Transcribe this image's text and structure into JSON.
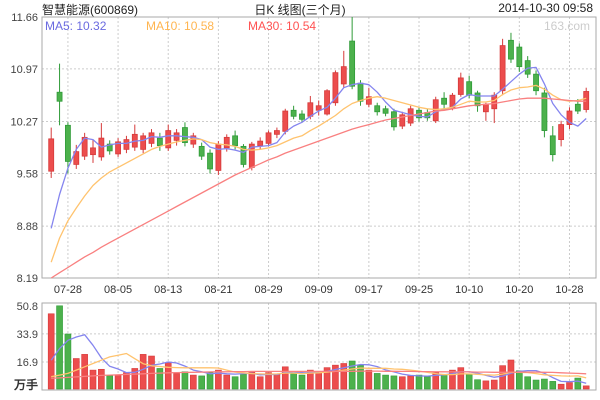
{
  "header": {
    "stock": "智慧能源(600869)",
    "title": "日K 线图(三个月)",
    "datetime": "2014-10-30 09:58"
  },
  "watermark": "163.com",
  "legend": {
    "items": [
      {
        "text": "MA5: 10.32",
        "color": "#6a6ae0"
      },
      {
        "text": "MA10: 10.58",
        "color": "#ffb550"
      },
      {
        "text": "MA30: 10.54",
        "color": "#ff5252"
      }
    ]
  },
  "chart_data": {
    "type": "candlestick",
    "title": "智慧能源(600869) 日K线图(三个月)",
    "y_axis": {
      "max": 11.66,
      "min": 8.19,
      "ticks": [
        11.66,
        10.97,
        10.27,
        9.58,
        8.88,
        8.19
      ]
    },
    "vol_axis": {
      "scale_max": 52.5,
      "ticks": [
        50.8,
        33.9,
        16.9
      ],
      "unit": "万手"
    },
    "x_ticks": [
      {
        "label": "07-28",
        "i": 2
      },
      {
        "label": "08-05",
        "i": 8
      },
      {
        "label": "08-13",
        "i": 14
      },
      {
        "label": "08-21",
        "i": 20
      },
      {
        "label": "08-29",
        "i": 26
      },
      {
        "label": "09-09",
        "i": 32
      },
      {
        "label": "09-17",
        "i": 38
      },
      {
        "label": "09-25",
        "i": 44
      },
      {
        "label": "10-10",
        "i": 50
      },
      {
        "label": "10-20",
        "i": 56
      },
      {
        "label": "10-28",
        "i": 62
      }
    ],
    "colors": {
      "up_fill": "#ec4d4d",
      "up_stroke": "#d63a3a",
      "down_fill": "#4cb14c",
      "down_stroke": "#2f9b38",
      "ma5": "#8585ef",
      "ma10": "#ffc36e",
      "ma30": "#f98080",
      "grid": "#cccccc",
      "border": "#aaaaaa",
      "y_label": "#444444",
      "x_label": "#333333"
    },
    "candles": [
      [
        "07-24",
        9.61,
        10.19,
        9.52,
        10.04,
        46.0
      ],
      [
        "07-25",
        10.66,
        11.04,
        10.22,
        10.54,
        50.8
      ],
      [
        "07-28",
        10.22,
        10.26,
        9.58,
        9.74,
        33.8
      ],
      [
        "07-29",
        9.7,
        9.96,
        9.64,
        9.87,
        19.0
      ],
      [
        "07-30",
        9.81,
        10.12,
        9.76,
        10.06,
        21.5
      ],
      [
        "07-31",
        9.83,
        10.03,
        9.72,
        9.92,
        12.0
      ],
      [
        "08-01",
        9.8,
        10.25,
        9.75,
        10.05,
        12.5
      ],
      [
        "08-04",
        9.97,
        10.02,
        9.83,
        9.88,
        8.6
      ],
      [
        "08-05",
        9.84,
        10.05,
        9.8,
        10.0,
        9.0
      ],
      [
        "08-06",
        9.9,
        10.08,
        9.85,
        10.03,
        10.5
      ],
      [
        "08-07",
        9.93,
        10.23,
        9.88,
        10.1,
        13.0
      ],
      [
        "08-08",
        9.9,
        10.12,
        9.85,
        10.08,
        21.5
      ],
      [
        "08-11",
        9.98,
        10.17,
        9.93,
        10.12,
        20.5
      ],
      [
        "08-12",
        10.05,
        10.12,
        9.88,
        9.95,
        13.0
      ],
      [
        "08-13",
        9.92,
        10.23,
        9.88,
        10.15,
        16.5
      ],
      [
        "08-14",
        10.02,
        10.17,
        9.95,
        10.12,
        10.0
      ],
      [
        "08-15",
        10.19,
        10.26,
        9.94,
        9.99,
        11.0
      ],
      [
        "08-18",
        9.97,
        10.12,
        9.92,
        10.08,
        9.0
      ],
      [
        "08-19",
        9.94,
        9.99,
        9.76,
        9.81,
        8.5
      ],
      [
        "08-20",
        9.85,
        9.9,
        9.58,
        9.64,
        10.5
      ],
      [
        "08-21",
        9.62,
        10.01,
        9.56,
        9.97,
        12.0
      ],
      [
        "08-22",
        9.92,
        10.1,
        9.87,
        10.06,
        9.0
      ],
      [
        "08-25",
        10.08,
        10.15,
        9.9,
        9.95,
        8.0
      ],
      [
        "08-26",
        9.94,
        9.97,
        9.66,
        9.7,
        9.5
      ],
      [
        "08-27",
        9.66,
        10.0,
        9.62,
        9.97,
        11.0
      ],
      [
        "08-28",
        9.95,
        10.06,
        9.9,
        10.01,
        8.0
      ],
      [
        "08-29",
        9.98,
        10.15,
        9.94,
        10.12,
        10.5
      ],
      [
        "09-01",
        10.1,
        10.19,
        10.05,
        10.15,
        9.5
      ],
      [
        "09-02",
        10.14,
        10.44,
        10.1,
        10.41,
        14.0
      ],
      [
        "09-03",
        10.42,
        10.48,
        10.3,
        10.34,
        10.0
      ],
      [
        "09-04",
        10.37,
        10.42,
        10.26,
        10.3,
        9.0
      ],
      [
        "09-05",
        10.34,
        10.61,
        10.3,
        10.52,
        12.0
      ],
      [
        "09-09",
        10.42,
        10.55,
        10.35,
        10.48,
        10.5
      ],
      [
        "09-10",
        10.37,
        10.7,
        10.35,
        10.68,
        13.5
      ],
      [
        "09-11",
        10.52,
        10.95,
        10.48,
        10.92,
        15.0
      ],
      [
        "09-12",
        10.77,
        11.21,
        10.72,
        11.0,
        16.0
      ],
      [
        "09-15",
        11.34,
        11.66,
        10.7,
        10.74,
        17.5
      ],
      [
        "09-16",
        10.78,
        10.82,
        10.48,
        10.54,
        15.0
      ],
      [
        "09-17",
        10.5,
        10.72,
        10.46,
        10.6,
        12.0
      ],
      [
        "09-18",
        10.48,
        10.52,
        10.35,
        10.4,
        10.0
      ],
      [
        "09-19",
        10.44,
        10.48,
        10.34,
        10.38,
        9.0
      ],
      [
        "09-22",
        10.4,
        10.44,
        10.15,
        10.2,
        8.5
      ],
      [
        "09-23",
        10.21,
        10.4,
        10.17,
        10.36,
        8.0
      ],
      [
        "09-24",
        10.25,
        10.48,
        10.21,
        10.44,
        8.5
      ],
      [
        "09-25",
        10.42,
        10.46,
        10.27,
        10.32,
        9.0
      ],
      [
        "09-26",
        10.39,
        10.43,
        10.28,
        10.32,
        8.0
      ],
      [
        "09-29",
        10.28,
        10.6,
        10.25,
        10.56,
        10.5
      ],
      [
        "09-30",
        10.58,
        10.66,
        10.44,
        10.5,
        9.5
      ],
      [
        "10-08",
        10.45,
        10.65,
        10.42,
        10.62,
        12.0
      ],
      [
        "10-09",
        10.63,
        10.92,
        10.6,
        10.85,
        13.5
      ],
      [
        "10-10",
        10.8,
        10.88,
        10.58,
        10.62,
        9.6
      ],
      [
        "10-13",
        10.65,
        10.68,
        10.4,
        10.48,
        6.2
      ],
      [
        "10-14",
        10.4,
        10.52,
        10.28,
        10.5,
        5.5
      ],
      [
        "10-15",
        10.44,
        10.66,
        10.25,
        10.62,
        6.0
      ],
      [
        "10-16",
        10.68,
        11.37,
        10.62,
        11.28,
        14.7
      ],
      [
        "10-17",
        11.35,
        11.45,
        11.05,
        11.1,
        18.1
      ],
      [
        "10-20",
        11.26,
        11.31,
        10.93,
        11.0,
        11.6
      ],
      [
        "10-21",
        11.08,
        11.14,
        10.85,
        10.9,
        8.0
      ],
      [
        "10-22",
        10.9,
        10.95,
        10.62,
        10.68,
        6.0
      ],
      [
        "10-23",
        10.65,
        10.72,
        10.06,
        10.15,
        6.6
      ],
      [
        "10-24",
        10.08,
        10.21,
        9.74,
        9.83,
        5.2
      ],
      [
        "10-27",
        10.03,
        10.28,
        9.94,
        10.23,
        3.5
      ],
      [
        "10-28",
        10.23,
        10.46,
        10.17,
        10.41,
        4.5
      ],
      [
        "10-29",
        10.5,
        10.57,
        10.37,
        10.41,
        7.2
      ],
      [
        "10-30",
        10.43,
        10.72,
        10.39,
        10.67,
        2.5
      ]
    ],
    "vol_color_overrides": {
      "55": "up"
    },
    "ma5": [
      8.85,
      9.3,
      9.65,
      9.9,
      10.05,
      10.03,
      9.93,
      9.96,
      9.98,
      9.98,
      10.01,
      10.02,
      10.07,
      10.06,
      10.08,
      10.08,
      10.07,
      10.06,
      10.03,
      9.93,
      9.9,
      9.91,
      9.89,
      9.86,
      9.93,
      9.94,
      9.95,
      9.99,
      10.13,
      10.21,
      10.26,
      10.34,
      10.41,
      10.46,
      10.58,
      10.72,
      10.76,
      10.78,
      10.76,
      10.66,
      10.53,
      10.42,
      10.39,
      10.36,
      10.34,
      10.33,
      10.4,
      10.43,
      10.46,
      10.57,
      10.63,
      10.61,
      10.61,
      10.61,
      10.7,
      10.8,
      10.9,
      10.98,
      10.99,
      10.77,
      10.51,
      10.36,
      10.26,
      10.21,
      10.31
    ],
    "ma10": [
      8.4,
      8.72,
      8.95,
      9.12,
      9.28,
      9.42,
      9.52,
      9.6,
      9.66,
      9.72,
      9.78,
      9.84,
      9.9,
      9.94,
      9.97,
      10.0,
      10.02,
      10.04,
      10.03,
      9.99,
      9.97,
      9.96,
      9.94,
      9.9,
      9.89,
      9.9,
      9.92,
      9.95,
      10.0,
      10.05,
      10.08,
      10.15,
      10.21,
      10.28,
      10.35,
      10.44,
      10.51,
      10.55,
      10.58,
      10.6,
      10.58,
      10.55,
      10.52,
      10.49,
      10.46,
      10.44,
      10.43,
      10.44,
      10.46,
      10.5,
      10.54,
      10.53,
      10.53,
      10.55,
      10.63,
      10.69,
      10.72,
      10.73,
      10.75,
      10.7,
      10.62,
      10.56,
      10.54,
      10.55,
      10.58
    ],
    "ma30": [
      8.19,
      8.26,
      8.33,
      8.4,
      8.47,
      8.53,
      8.6,
      8.66,
      8.72,
      8.78,
      8.84,
      8.9,
      8.96,
      9.02,
      9.08,
      9.14,
      9.2,
      9.26,
      9.32,
      9.38,
      9.44,
      9.5,
      9.56,
      9.61,
      9.66,
      9.71,
      9.76,
      9.8,
      9.85,
      9.89,
      9.93,
      9.97,
      10.01,
      10.05,
      10.09,
      10.13,
      10.17,
      10.2,
      10.23,
      10.26,
      10.29,
      10.31,
      10.33,
      10.35,
      10.37,
      10.39,
      10.41,
      10.42,
      10.44,
      10.46,
      10.48,
      10.49,
      10.5,
      10.51,
      10.53,
      10.55,
      10.57,
      10.58,
      10.58,
      10.58,
      10.57,
      10.56,
      10.55,
      10.54,
      10.54
    ],
    "vma5": [
      18.0,
      25.0,
      30.0,
      32.0,
      33.4,
      27.0,
      19.4,
      14.3,
      12.7,
      10.5,
      10.7,
      12.5,
      14.9,
      15.7,
      16.9,
      16.3,
      14.4,
      12.0,
      11.0,
      9.8,
      10.2,
      9.8,
      9.6,
      9.9,
      10.1,
      9.1,
      9.4,
      9.3,
      10.6,
      10.4,
      10.6,
      10.9,
      11.0,
      11.2,
      12.4,
      13.4,
      14.5,
      15.4,
      15.2,
      14.1,
      12.1,
      10.9,
      9.6,
      8.8,
      8.5,
      8.4,
      8.8,
      9.1,
      9.9,
      10.9,
      11.0,
      10.2,
      8.8,
      7.7,
      8.4,
      10.1,
      11.2,
      11.7,
      11.7,
      10.1,
      7.5,
      5.2,
      5.0,
      5.4,
      4.1
    ],
    "vma10": [
      8.0,
      9.0,
      10.0,
      12.0,
      14.0,
      16.0,
      18.0,
      20.0,
      21.0,
      22.0,
      18.9,
      15.9,
      14.6,
      14.2,
      13.7,
      13.5,
      13.4,
      13.4,
      13.4,
      13.4,
      13.3,
      12.0,
      10.8,
      10.4,
      9.9,
      9.7,
      9.6,
      9.7,
      10.2,
      10.2,
      9.9,
      10.2,
      10.4,
      10.8,
      11.2,
      12.0,
      12.7,
      13.3,
      13.1,
      13.1,
      13.1,
      12.7,
      12.5,
      12.0,
      11.4,
      10.6,
      9.9,
      9.3,
      9.3,
      9.7,
      9.7,
      9.5,
      9.2,
      9.0,
      9.6,
      10.6,
      10.7,
      10.5,
      9.9,
      9.2,
      8.8,
      8.5,
      8.4,
      8.5,
      7.3
    ],
    "vma30": [
      7.0,
      7.3,
      7.6,
      7.9,
      8.2,
      8.5,
      8.8,
      9.0,
      9.2,
      9.4,
      9.6,
      9.8,
      10.0,
      10.2,
      10.4,
      10.5,
      10.6,
      10.7,
      10.8,
      10.9,
      11.0,
      11.0,
      11.1,
      11.1,
      11.2,
      11.2,
      11.2,
      11.2,
      11.2,
      11.2,
      11.2,
      11.2,
      11.2,
      11.2,
      11.3,
      11.3,
      11.3,
      11.4,
      11.4,
      11.4,
      11.3,
      11.3,
      11.2,
      11.2,
      11.1,
      11.1,
      11.0,
      11.0,
      10.9,
      10.9,
      10.9,
      10.8,
      10.8,
      10.7,
      10.7,
      10.8,
      10.8,
      10.8,
      10.8,
      10.7,
      10.6,
      10.4,
      10.2,
      10.0,
      9.8
    ]
  }
}
